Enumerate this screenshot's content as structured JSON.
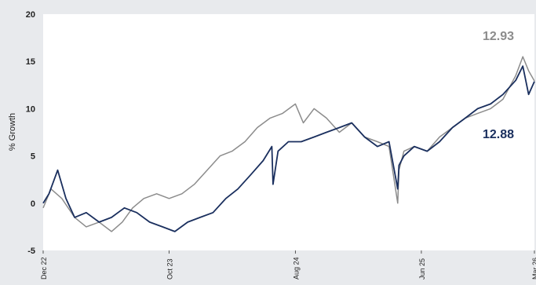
{
  "chart_data": {
    "type": "line",
    "ylabel": "% Growth",
    "ylim": [
      -5,
      20
    ],
    "y_ticks": [
      "-5",
      "0",
      "5",
      "10",
      "15",
      "20"
    ],
    "x_ticks": [
      "Dec 22",
      "Oct 23",
      "Aug 24",
      "Jun 25",
      "Mar 26"
    ],
    "x_range": [
      "2022-12-01",
      "2026-03-01"
    ],
    "grid": false,
    "colors": {
      "dark": "#1a2f5e",
      "grey": "#8c8c8c",
      "background": "#e8eaed",
      "plot": "#ffffff"
    },
    "series": [
      {
        "key": "grey",
        "end_label": "12.93",
        "x": [
          "2022-12-01",
          "2022-12-20",
          "2023-01-15",
          "2023-02-15",
          "2023-03-15",
          "2023-04-15",
          "2023-05-15",
          "2023-06-10",
          "2023-07-05",
          "2023-08-01",
          "2023-09-01",
          "2023-10-01",
          "2023-11-01",
          "2023-12-01",
          "2024-01-01",
          "2024-02-01",
          "2024-03-01",
          "2024-04-01",
          "2024-05-01",
          "2024-06-01",
          "2024-07-01",
          "2024-08-01",
          "2024-08-20",
          "2024-09-15",
          "2024-10-15",
          "2024-11-15",
          "2024-12-15",
          "2025-01-15",
          "2025-02-15",
          "2025-03-15",
          "2025-04-05",
          "2025-04-08",
          "2025-04-20",
          "2025-05-15",
          "2025-06-15",
          "2025-07-15",
          "2025-08-15",
          "2025-09-15",
          "2025-10-15",
          "2025-11-15",
          "2025-12-15",
          "2026-01-15",
          "2026-02-01",
          "2026-02-15",
          "2026-03-01"
        ],
        "values": [
          -0.5,
          1.5,
          0.5,
          -1.5,
          -2.5,
          -2.0,
          -3.0,
          -2.0,
          -0.5,
          0.5,
          1.0,
          0.5,
          1.0,
          2.0,
          3.5,
          5.0,
          5.5,
          6.5,
          8.0,
          9.0,
          9.5,
          10.5,
          8.5,
          10.0,
          9.0,
          7.5,
          8.5,
          7.0,
          6.5,
          6.0,
          0.0,
          3.5,
          5.5,
          6.0,
          5.5,
          7.0,
          8.0,
          9.0,
          9.5,
          10.0,
          11.0,
          13.5,
          15.5,
          14.0,
          12.93
        ]
      },
      {
        "key": "dark",
        "end_label": "12.88",
        "x": [
          "2022-12-01",
          "2022-12-15",
          "2023-01-05",
          "2023-01-25",
          "2023-02-15",
          "2023-03-15",
          "2023-04-15",
          "2023-05-15",
          "2023-06-15",
          "2023-07-15",
          "2023-08-15",
          "2023-09-15",
          "2023-10-15",
          "2023-11-15",
          "2023-12-15",
          "2024-01-15",
          "2024-02-15",
          "2024-03-15",
          "2024-04-15",
          "2024-05-15",
          "2024-06-05",
          "2024-06-08",
          "2024-06-20",
          "2024-07-15",
          "2024-08-15",
          "2024-09-15",
          "2024-10-15",
          "2024-11-15",
          "2024-12-15",
          "2025-01-15",
          "2025-02-15",
          "2025-03-15",
          "2025-04-05",
          "2025-04-08",
          "2025-04-20",
          "2025-05-15",
          "2025-06-15",
          "2025-07-15",
          "2025-08-15",
          "2025-09-15",
          "2025-10-15",
          "2025-11-15",
          "2025-12-15",
          "2026-01-15",
          "2026-02-01",
          "2026-02-15",
          "2026-03-01"
        ],
        "values": [
          0.0,
          1.0,
          3.5,
          0.5,
          -1.5,
          -1.0,
          -2.0,
          -1.5,
          -0.5,
          -1.0,
          -2.0,
          -2.5,
          -3.0,
          -2.0,
          -1.5,
          -1.0,
          0.5,
          1.5,
          3.0,
          4.5,
          6.0,
          2.0,
          5.5,
          6.5,
          6.5,
          7.0,
          7.5,
          8.0,
          8.5,
          7.0,
          6.0,
          6.5,
          1.5,
          4.0,
          5.0,
          6.0,
          5.5,
          6.5,
          8.0,
          9.0,
          10.0,
          10.5,
          11.5,
          13.0,
          14.5,
          11.5,
          12.88
        ]
      }
    ]
  }
}
